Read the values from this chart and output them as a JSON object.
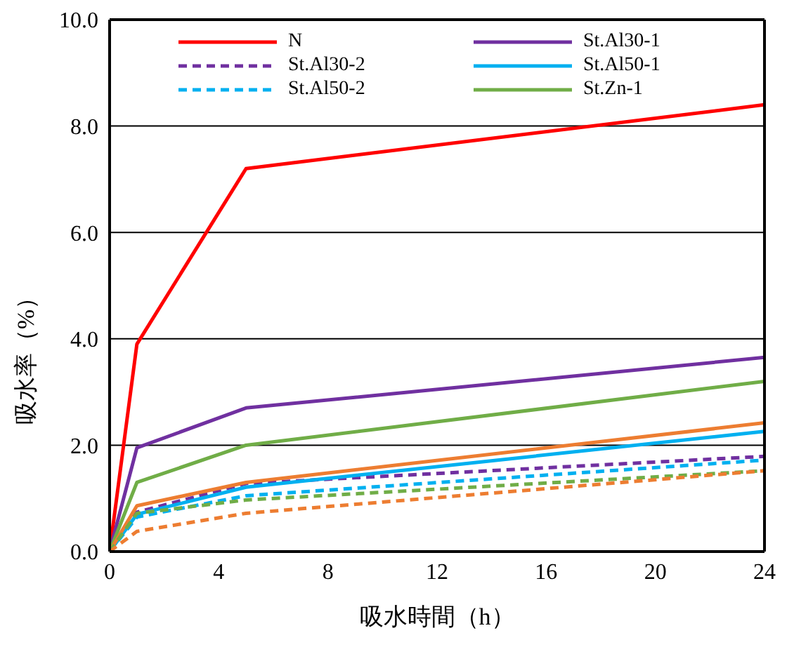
{
  "chart_data": {
    "type": "line",
    "xlabel": "吸水時間（h）",
    "ylabel": "吸水率（%）",
    "x": [
      0,
      1,
      5,
      24
    ],
    "series": [
      {
        "name": "N",
        "color": "#ff0000",
        "values": [
          0,
          3.9,
          7.2,
          8.4
        ]
      },
      {
        "name": "St.Al30-1",
        "color": "#7030a0",
        "values": [
          0,
          1.95,
          2.7,
          3.65
        ]
      },
      {
        "name": "St.Al30-2",
        "color": "#7030a0",
        "values": [
          0,
          0.74,
          1.28,
          1.79
        ],
        "line_style": "dashed"
      },
      {
        "name": "St.Al50-1",
        "color": "#00b0f0",
        "values": [
          0,
          0.7,
          1.21,
          2.26
        ]
      },
      {
        "name": "St.Al50-2",
        "color": "#00b0f0",
        "values": [
          0,
          0.65,
          1.05,
          1.72
        ],
        "line_style": "dashed"
      },
      {
        "name": "St.Zn-1",
        "color": "#70ad47",
        "values": [
          0,
          1.3,
          2.0,
          3.2
        ]
      },
      {
        "color": "#ed7d31",
        "values": [
          0,
          0.86,
          1.3,
          2.42
        ]
      },
      {
        "color": "#70ad47",
        "values": [
          0,
          0.72,
          0.97,
          1.52
        ],
        "line_style": "dashed"
      },
      {
        "color": "#ed7d31",
        "values": [
          0,
          0.38,
          0.72,
          1.52
        ],
        "line_style": "dashed"
      }
    ],
    "xlim": [
      0,
      24
    ],
    "xticks": [
      0,
      4,
      8,
      12,
      16,
      20,
      24
    ],
    "ylim": [
      0,
      10
    ],
    "yticks": [
      {
        "value": 0,
        "label": "0.0"
      },
      {
        "value": 2,
        "label": "2.0"
      },
      {
        "value": 4,
        "label": "4.0"
      },
      {
        "value": 6,
        "label": "6.0"
      },
      {
        "value": 8,
        "label": "8.0"
      },
      {
        "value": 10,
        "label": "10.0"
      }
    ],
    "grid": "y",
    "legend": "top",
    "marker": "none",
    "line_style": "solid"
  }
}
